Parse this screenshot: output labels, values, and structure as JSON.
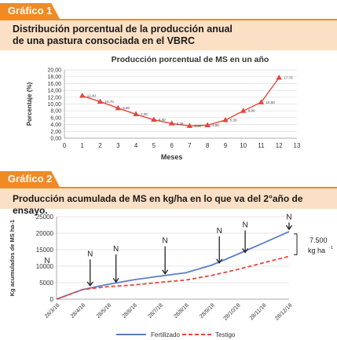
{
  "figure1": {
    "tab_label": "Gráfico 1",
    "title_line1": "Distribución porcentual de la producción anual",
    "title_line2": "de una pastura consociada en el VBRC",
    "chart_data": {
      "type": "line",
      "title": "Producción porcentual de MS en un año",
      "xlabel": "Meses",
      "ylabel": "Porcentaje (%)",
      "x_ticks": [
        0,
        1,
        2,
        3,
        4,
        5,
        6,
        7,
        8,
        9,
        10,
        11,
        12,
        13
      ],
      "y_ticks": [
        "0,00",
        "2,00",
        "4,00",
        "6,00",
        "8,00",
        "10,00",
        "12,00",
        "14,00",
        "16,00",
        "18,00",
        "20,00"
      ],
      "xlim": [
        0,
        13
      ],
      "ylim": [
        0,
        20
      ],
      "series": [
        {
          "color": "#e8453c",
          "x": [
            1,
            2,
            3,
            4,
            5,
            6,
            7,
            8,
            9,
            10,
            11,
            12
          ],
          "values": [
            12.4,
            10.7,
            8.8,
            7.0,
            5.4,
            4.3,
            3.6,
            3.8,
            5.3,
            8.0,
            10.5,
            17.7
          ],
          "labels": [
            "12,40",
            "10,70",
            "8,80",
            "7,00",
            "5,40",
            "4,30",
            "3,60",
            "3,80",
            "5,30",
            "8,00",
            "10,50",
            "17,70"
          ]
        }
      ],
      "grid": true
    }
  },
  "figure2": {
    "tab_label": "Gráfico 2",
    "title": "Producción acumulada de MS en kg/ha en lo que va del 2°año de ensayo.",
    "chart_data": {
      "type": "line",
      "ylabel": "Kg acumulados de MS ha-1",
      "categories": [
        "28/3/18",
        "28/4/18",
        "28/5/18",
        "28/6/18",
        "28/7/18",
        "28/8/18",
        "28/9/18",
        "28/10/18",
        "28/11/18",
        "28/12/18"
      ],
      "y_ticks": [
        "0",
        "5000",
        "10000",
        "15000",
        "20000",
        "25000"
      ],
      "ylim": [
        0,
        25000
      ],
      "series": [
        {
          "name": "Fertilizado",
          "color": "#5b7fc6",
          "dash": false,
          "values": [
            0,
            2900,
            4500,
            5900,
            7000,
            8000,
            10300,
            13600,
            17000,
            20500
          ]
        },
        {
          "name": "Testigo",
          "color": "#e8453c",
          "dash": true,
          "values": [
            0,
            2900,
            3800,
            4300,
            5100,
            5800,
            7200,
            9000,
            11000,
            13000
          ]
        }
      ],
      "annotations": {
        "n_marker": "N",
        "n_arrows": [
          {
            "n_at_x": 0.2,
            "n_at_y": 11000
          },
          {
            "x": 1.3,
            "n_at_y": 13000,
            "tip_y": 3600
          },
          {
            "x": 2.3,
            "n_at_y": 14500,
            "tip_y": 4700
          },
          {
            "x": 4.2,
            "n_at_y": 17000,
            "tip_y": 7200
          },
          {
            "x": 6.3,
            "n_at_y": 20000,
            "tip_y": 10500
          },
          {
            "x": 7.3,
            "n_at_y": 21800,
            "tip_y": 13700
          },
          {
            "x": 9.0,
            "n_at_y": 24200,
            "tip_y": 20700
          }
        ],
        "difference_value": "7.500",
        "difference_unit": "kg ha",
        "difference_unit_exp": "-1"
      }
    }
  }
}
